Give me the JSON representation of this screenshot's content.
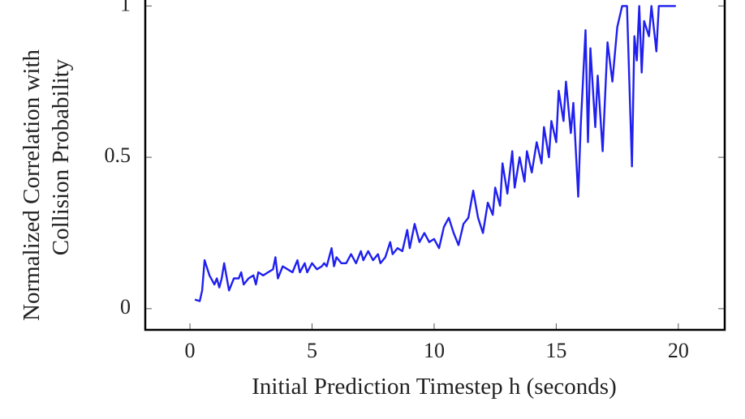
{
  "chart_data": {
    "type": "line",
    "xlabel": "Initial Prediction Timestep h (seconds)",
    "ylabel": [
      "Normalized Correlation with",
      "Collision Probability"
    ],
    "xlim": [
      -1.83,
      21.9
    ],
    "ylim": [
      -0.07,
      1.1
    ],
    "xticks": [
      0,
      5,
      10,
      15,
      20
    ],
    "yticks": [
      0,
      0.5,
      1
    ],
    "series": [
      {
        "color": "#1f1fef",
        "x": [
          0.2,
          0.4,
          0.5,
          0.6,
          0.8,
          1.0,
          1.1,
          1.2,
          1.3,
          1.4,
          1.6,
          1.8,
          2.0,
          2.1,
          2.2,
          2.4,
          2.6,
          2.7,
          2.8,
          3.0,
          3.2,
          3.4,
          3.5,
          3.6,
          3.8,
          4.0,
          4.2,
          4.4,
          4.5,
          4.7,
          4.8,
          5.0,
          5.2,
          5.4,
          5.5,
          5.6,
          5.8,
          5.9,
          6.0,
          6.2,
          6.4,
          6.6,
          6.8,
          7.0,
          7.1,
          7.3,
          7.5,
          7.7,
          7.8,
          8.0,
          8.2,
          8.3,
          8.5,
          8.7,
          8.9,
          9.0,
          9.2,
          9.4,
          9.6,
          9.8,
          10.0,
          10.2,
          10.4,
          10.6,
          10.8,
          11.0,
          11.2,
          11.4,
          11.6,
          11.8,
          12.0,
          12.2,
          12.4,
          12.5,
          12.7,
          12.8,
          13.0,
          13.2,
          13.3,
          13.5,
          13.7,
          13.8,
          14.0,
          14.2,
          14.4,
          14.5,
          14.7,
          14.8,
          15.0,
          15.1,
          15.3,
          15.4,
          15.6,
          15.7,
          15.9,
          16.0,
          16.2,
          16.3,
          16.4,
          16.6,
          16.7,
          16.9,
          17.1,
          17.3,
          17.5,
          17.7,
          17.9,
          18.1,
          18.2,
          18.3,
          18.4,
          18.5,
          18.6,
          18.8,
          18.9,
          19.1,
          19.2,
          19.9
        ],
        "values": [
          0.03,
          0.025,
          0.06,
          0.16,
          0.11,
          0.08,
          0.1,
          0.07,
          0.1,
          0.15,
          0.06,
          0.1,
          0.1,
          0.12,
          0.08,
          0.1,
          0.11,
          0.08,
          0.12,
          0.11,
          0.12,
          0.13,
          0.17,
          0.1,
          0.14,
          0.13,
          0.12,
          0.16,
          0.12,
          0.15,
          0.12,
          0.15,
          0.13,
          0.14,
          0.15,
          0.14,
          0.2,
          0.14,
          0.17,
          0.15,
          0.15,
          0.18,
          0.15,
          0.19,
          0.16,
          0.19,
          0.16,
          0.18,
          0.15,
          0.17,
          0.22,
          0.18,
          0.2,
          0.19,
          0.26,
          0.2,
          0.28,
          0.22,
          0.25,
          0.22,
          0.23,
          0.2,
          0.27,
          0.3,
          0.25,
          0.21,
          0.28,
          0.3,
          0.39,
          0.3,
          0.25,
          0.35,
          0.31,
          0.4,
          0.34,
          0.48,
          0.38,
          0.52,
          0.4,
          0.5,
          0.42,
          0.52,
          0.45,
          0.55,
          0.48,
          0.6,
          0.5,
          0.62,
          0.55,
          0.72,
          0.62,
          0.75,
          0.58,
          0.68,
          0.37,
          0.6,
          0.92,
          0.55,
          0.86,
          0.6,
          0.77,
          0.52,
          0.88,
          0.75,
          0.93,
          1.0,
          1.0,
          0.47,
          0.9,
          0.82,
          1.0,
          0.78,
          0.95,
          0.9,
          1.0,
          0.85,
          1.0,
          1.0
        ]
      }
    ]
  }
}
